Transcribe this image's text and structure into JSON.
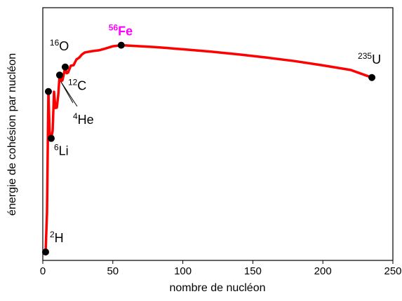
{
  "chart_data": {
    "type": "line",
    "xlabel": "nombre de nucléon",
    "ylabel": "énergie de cohésion par nucléon",
    "xlim": [
      0,
      250
    ],
    "xticks": [
      0,
      50,
      100,
      150,
      200,
      250
    ],
    "y_ticks_labeled": false,
    "grid": false,
    "legend": "none",
    "line_color": "#ff0000",
    "marker_color": "#000000",
    "curve": {
      "x": [
        2,
        3,
        4,
        5,
        6,
        7,
        8,
        9,
        10,
        11,
        12,
        13,
        14,
        15,
        16,
        17,
        18,
        20,
        22,
        24,
        26,
        28,
        30,
        35,
        40,
        45,
        50,
        56,
        60,
        70,
        80,
        90,
        100,
        120,
        140,
        160,
        180,
        200,
        220,
        235
      ],
      "y": [
        1.11,
        2.57,
        7.07,
        5.33,
        5.33,
        5.61,
        7.06,
        6.46,
        6.47,
        6.93,
        7.68,
        7.47,
        7.48,
        7.7,
        7.98,
        7.75,
        7.77,
        8.03,
        8.05,
        8.26,
        8.33,
        8.45,
        8.52,
        8.57,
        8.6,
        8.67,
        8.75,
        8.79,
        8.78,
        8.75,
        8.72,
        8.68,
        8.64,
        8.55,
        8.45,
        8.33,
        8.2,
        8.04,
        7.87,
        7.59
      ]
    },
    "points": [
      {
        "label_sup": "2",
        "label": "H",
        "x": 2,
        "y": 1.11
      },
      {
        "label_sup": "4",
        "label": "He",
        "x": 4,
        "y": 7.07
      },
      {
        "label_sup": "6",
        "label": "Li",
        "x": 6,
        "y": 5.33
      },
      {
        "label_sup": "12",
        "label": "C",
        "x": 12,
        "y": 7.68
      },
      {
        "label_sup": "16",
        "label": "O",
        "x": 16,
        "y": 7.98
      },
      {
        "label_sup": "56",
        "label": "Fe",
        "x": 56,
        "y": 8.79,
        "color": "#ff00ff"
      },
      {
        "label_sup": "235",
        "label": "U",
        "x": 235,
        "y": 7.59
      }
    ]
  }
}
